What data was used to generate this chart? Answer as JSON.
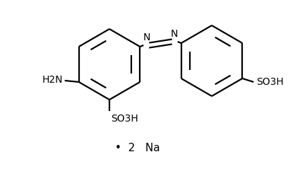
{
  "bg_color": "#ffffff",
  "line_color": "#000000",
  "line_width": 1.6,
  "fig_width": 4.25,
  "fig_height": 2.49,
  "dpi": 100,
  "nh2_label": "H2N",
  "so3h_left_label": "SO3H",
  "so3h_right_label": "SO3H",
  "na_label": "•  2   Na",
  "font_size": 10,
  "n_label": "N"
}
